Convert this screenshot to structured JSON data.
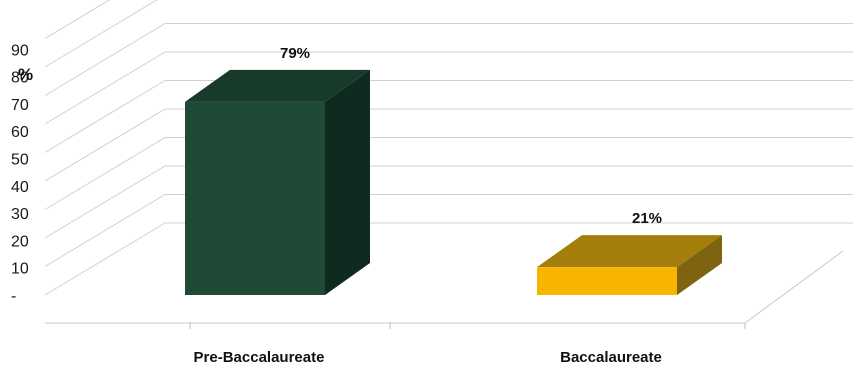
{
  "chart_data": {
    "type": "bar",
    "title": "",
    "ylabel": "%",
    "xlabel": "",
    "categories": [
      "Pre-Baccalaureate",
      "Baccalaureate"
    ],
    "values": [
      79,
      21
    ],
    "data_labels": [
      "79%",
      "21%"
    ],
    "ylim": [
      0,
      100
    ],
    "yticks": [
      {
        "value": 0,
        "label": "-"
      },
      {
        "value": 10,
        "label": "10"
      },
      {
        "value": 20,
        "label": "20"
      },
      {
        "value": 30,
        "label": "30"
      },
      {
        "value": 40,
        "label": "40"
      },
      {
        "value": 50,
        "label": "50"
      },
      {
        "value": 60,
        "label": "60"
      },
      {
        "value": 70,
        "label": "70"
      },
      {
        "value": 80,
        "label": "80"
      },
      {
        "value": 90,
        "label": "90"
      }
    ],
    "grid": true,
    "legend": "none",
    "style": "3d-columns",
    "colors": {
      "Pre-Baccalaureate": {
        "front": "#1f4a36",
        "top": "#173a2a",
        "side": "#0f2b1f"
      },
      "Baccalaureate": {
        "front": "#f7b500",
        "top": "#a47e0a",
        "side": "#7e6410"
      },
      "gridline": "#d0d0d0"
    }
  }
}
